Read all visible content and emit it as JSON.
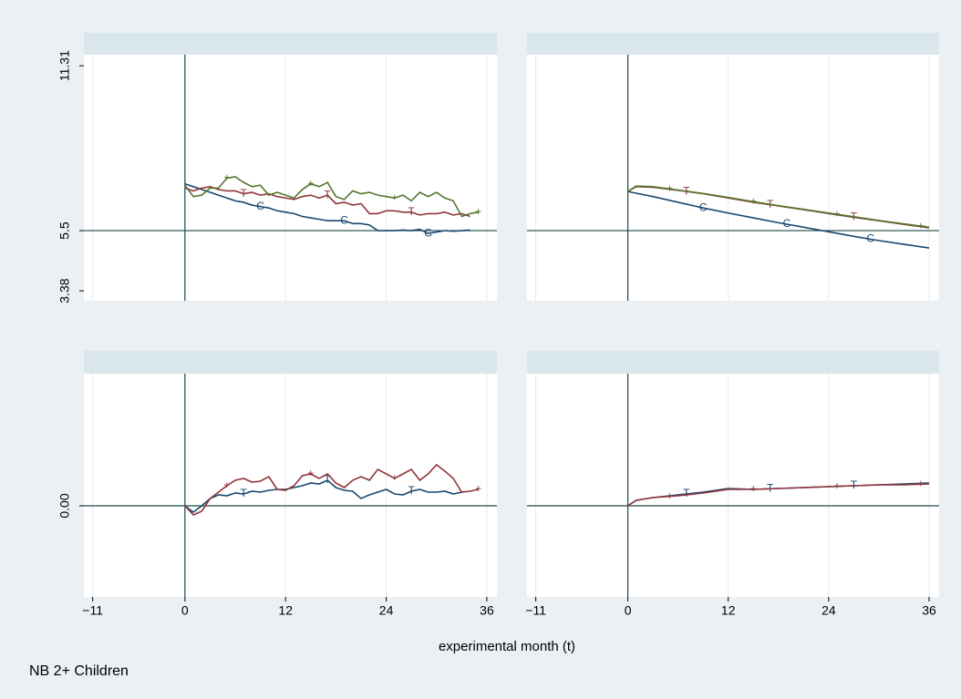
{
  "chart_data": [
    {
      "type": "line",
      "x": [
        0,
        1,
        2,
        3,
        4,
        5,
        6,
        7,
        8,
        9,
        10,
        11,
        12,
        13,
        14,
        15,
        16,
        17,
        18,
        19,
        20,
        21,
        22,
        23,
        24,
        25,
        26,
        27,
        28,
        29,
        30,
        31,
        32,
        33,
        34,
        35
      ],
      "series": [
        {
          "name": "C",
          "color": "#1a476f",
          "values": [
            7.15,
            7.05,
            6.95,
            6.85,
            6.75,
            6.65,
            6.55,
            6.5,
            6.4,
            6.35,
            6.3,
            6.2,
            6.15,
            6.1,
            6.0,
            5.95,
            5.9,
            5.85,
            5.85,
            5.85,
            5.75,
            5.75,
            5.7,
            5.5,
            5.5,
            5.5,
            5.52,
            5.5,
            5.55,
            5.4,
            5.45,
            5.5,
            5.48,
            5.5,
            5.52,
            null
          ]
        },
        {
          "name": "T",
          "color": "#90353b",
          "values": [
            7.0,
            6.9,
            7.0,
            7.05,
            6.95,
            6.9,
            6.9,
            6.8,
            6.85,
            6.75,
            6.8,
            6.7,
            6.65,
            6.6,
            6.7,
            6.75,
            6.65,
            6.75,
            6.45,
            6.5,
            6.4,
            6.45,
            6.1,
            6.1,
            6.2,
            6.2,
            6.15,
            6.15,
            6.05,
            6.1,
            6.1,
            6.15,
            6.05,
            6.1,
            6.0,
            null
          ]
        },
        {
          "name": "+",
          "color": "#55752f",
          "values": [
            7.1,
            6.7,
            6.75,
            7.0,
            7.0,
            7.35,
            7.4,
            7.2,
            7.05,
            7.1,
            6.75,
            6.85,
            6.75,
            6.65,
            6.95,
            7.15,
            7.05,
            7.2,
            6.7,
            6.6,
            6.9,
            6.8,
            6.85,
            6.75,
            6.7,
            6.65,
            6.75,
            6.55,
            6.85,
            6.7,
            6.85,
            6.65,
            6.55,
            6.0,
            6.1,
            6.15
          ]
        }
      ],
      "xlim": [
        -12.05,
        37.2
      ],
      "ylim": [
        3.03,
        11.7
      ],
      "xticks": [
        {
          "value": -11,
          "label": "−11"
        },
        0,
        12,
        24,
        36
      ],
      "xtick_labels": false,
      "yticks": [
        3.38,
        5.5,
        11.31
      ],
      "xline": 0,
      "yline": 5.5
    },
    {
      "type": "line",
      "x": [
        0,
        1,
        3,
        6,
        9,
        12,
        15,
        18,
        21,
        24,
        27,
        30,
        33,
        36
      ],
      "series": [
        {
          "name": "C",
          "color": "#1a476f",
          "values": [
            6.88,
            6.82,
            6.7,
            6.5,
            6.3,
            6.12,
            5.95,
            5.78,
            5.62,
            5.46,
            5.3,
            5.15,
            5.02,
            4.89
          ]
        },
        {
          "name": "T",
          "color": "#90353b",
          "values": [
            6.88,
            7.05,
            7.03,
            6.92,
            6.8,
            6.65,
            6.5,
            6.37,
            6.24,
            6.1,
            5.97,
            5.85,
            5.72,
            5.6
          ]
        },
        {
          "name": "+",
          "color": "#55752f",
          "values": [
            6.88,
            7.07,
            7.05,
            6.93,
            6.81,
            6.67,
            6.52,
            6.38,
            6.25,
            6.12,
            5.99,
            5.86,
            5.74,
            5.62
          ]
        }
      ],
      "xlim": [
        -12.05,
        37.2
      ],
      "ylim": [
        3.03,
        11.7
      ],
      "xticks": [
        {
          "value": -11,
          "label": "−11"
        },
        0,
        12,
        24,
        36
      ],
      "xtick_labels": false,
      "xline": 0,
      "yline": 5.5
    },
    {
      "type": "line",
      "x": [
        0,
        1,
        2,
        3,
        4,
        5,
        6,
        7,
        8,
        9,
        10,
        11,
        12,
        13,
        14,
        15,
        16,
        17,
        18,
        19,
        20,
        21,
        22,
        23,
        24,
        25,
        26,
        27,
        28,
        29,
        30,
        31,
        32,
        33,
        34,
        35
      ],
      "series": [
        {
          "name": "T",
          "color": "#1a476f",
          "values": [
            0,
            -0.07,
            0.0,
            0.08,
            0.12,
            0.11,
            0.14,
            0.13,
            0.16,
            0.15,
            0.17,
            0.18,
            0.18,
            0.2,
            0.22,
            0.25,
            0.24,
            0.28,
            0.2,
            0.17,
            0.16,
            0.08,
            0.12,
            0.15,
            0.18,
            0.13,
            0.12,
            0.16,
            0.18,
            0.15,
            0.15,
            0.16,
            0.13,
            0.15,
            null,
            null
          ]
        },
        {
          "name": "+",
          "color": "#90353b",
          "values": [
            0,
            -0.1,
            -0.06,
            0.08,
            0.15,
            0.22,
            0.28,
            0.3,
            0.26,
            0.27,
            0.32,
            0.18,
            0.17,
            0.22,
            0.33,
            0.35,
            0.3,
            0.35,
            0.25,
            0.2,
            0.28,
            0.32,
            0.28,
            0.4,
            0.35,
            0.3,
            0.35,
            0.4,
            0.28,
            0.35,
            0.45,
            0.38,
            0.3,
            0.15,
            0.16,
            0.18
          ]
        }
      ],
      "xlim": [
        -12.05,
        37.2
      ],
      "ylim": [
        -1,
        1.45
      ],
      "xticks": [
        {
          "value": -11,
          "label": "−11"
        },
        0,
        12,
        24,
        36
      ],
      "xtick_labels": true,
      "yticks": [
        {
          "value": 0,
          "label": "0.00"
        }
      ],
      "xline": 0,
      "yline": 0
    },
    {
      "type": "line",
      "x": [
        0,
        1,
        3,
        6,
        9,
        12,
        15,
        18,
        21,
        24,
        27,
        30,
        33,
        36
      ],
      "series": [
        {
          "name": "T",
          "color": "#1a476f",
          "values": [
            0,
            0.06,
            0.09,
            0.12,
            0.15,
            0.19,
            0.18,
            0.19,
            0.2,
            0.21,
            0.22,
            0.23,
            0.24,
            0.25
          ]
        },
        {
          "name": "+",
          "color": "#90353b",
          "values": [
            0,
            0.06,
            0.09,
            0.11,
            0.14,
            0.18,
            0.18,
            0.19,
            0.2,
            0.21,
            0.22,
            0.23,
            0.23,
            0.24
          ]
        }
      ],
      "xlim": [
        -12.05,
        37.2
      ],
      "ylim": [
        -1,
        1.45
      ],
      "xticks": [
        {
          "value": -11,
          "label": "−11"
        },
        0,
        12,
        24,
        36
      ],
      "xtick_labels": true,
      "xline": 0,
      "yline": 0
    }
  ],
  "xlabel": "experimental month (t)",
  "note": "NB 2+ Children"
}
